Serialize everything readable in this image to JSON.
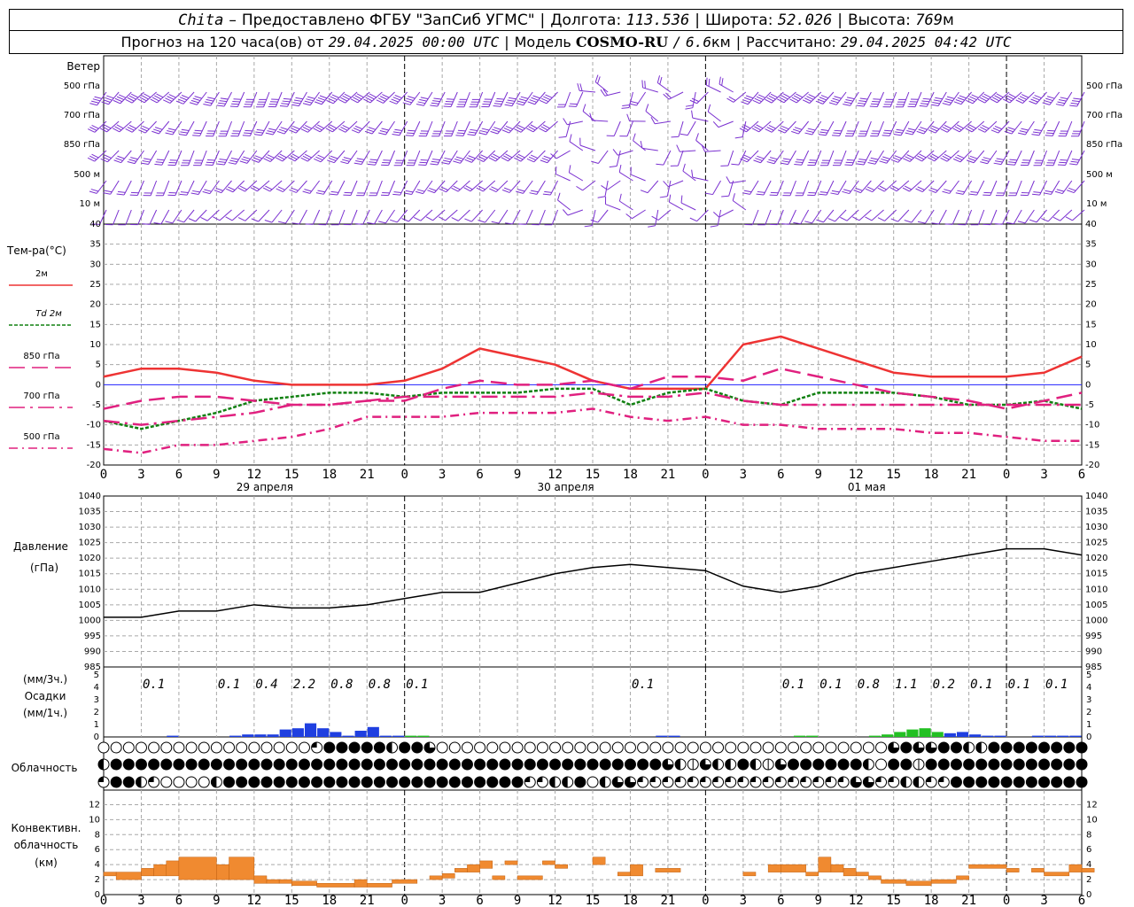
{
  "header": {
    "station": "Chita",
    "dash": "–",
    "provider": "Предоставлено ФГБУ \"ЗапСиб УГМС\"",
    "lon_label": "Долгота:",
    "lon_value": "113.536",
    "lat_label": "Широта:",
    "lat_value": "52.026",
    "alt_label": "Высота:",
    "alt_value": "769",
    "alt_unit": "м",
    "forecast_prefix": "Прогноз на 120 часа(ов) от",
    "forecast_start": "29.04.2025 00:00 UTC",
    "model_label": "Модель",
    "model_name": "COSMO-RU",
    "model_res_sep": "/",
    "model_res": "6.6",
    "model_res_unit": "км",
    "computed_label": "Рассчитано:",
    "computed_value": "29.04.2025 04:42 UTC"
  },
  "colors": {
    "wind": "#7a30d0",
    "t2m": "#ee3333",
    "td2m": "#108010",
    "t850": "#e0207f",
    "t700": "#e0207f",
    "t500": "#e0207f",
    "pressure": "#000000",
    "precip_blue": "#1f3fe0",
    "precip_green": "#22c022",
    "convective": "#f08a30",
    "grid": "#a8a8a8",
    "zero_line": "#2020ff"
  },
  "time_axis": {
    "hour_labels": [
      "0",
      "3",
      "6",
      "9",
      "12",
      "15",
      "18",
      "21",
      "0",
      "3",
      "6",
      "9",
      "12",
      "15",
      "18",
      "21",
      "0",
      "3",
      "6",
      "9",
      "12",
      "15",
      "18",
      "21",
      "0",
      "3",
      "6"
    ],
    "date_labels": [
      "29 апреля",
      "30 апреля",
      "01 мая"
    ]
  },
  "wind_panel": {
    "title": "Ветер",
    "levels": [
      "500 гПа",
      "700 гПа",
      "850 гПа",
      "500 м",
      "10 м"
    ]
  },
  "chart_data": [
    {
      "type": "line",
      "title": "Тем-ра(°C)",
      "ylim": [
        -20,
        40
      ],
      "yticks": [
        "40",
        "35",
        "30",
        "25",
        "20",
        "15",
        "10",
        "5",
        "0",
        "-5",
        "-10",
        "-15",
        "-20"
      ],
      "x_hours": [
        0,
        3,
        6,
        9,
        12,
        15,
        18,
        21,
        24,
        27,
        30,
        33,
        36,
        39,
        42,
        45,
        48,
        51,
        54,
        57,
        60,
        63,
        66,
        69,
        72,
        75,
        78
      ],
      "series": [
        {
          "name": "2м",
          "values": [
            2,
            4,
            4,
            3,
            1,
            0,
            0,
            0,
            1,
            4,
            9,
            7,
            5,
            1,
            -1,
            -1,
            -1,
            10,
            12,
            9,
            6,
            3,
            2,
            2,
            2,
            3,
            7
          ]
        },
        {
          "name": "Td 2м",
          "values": [
            -9,
            -11,
            -9,
            -7,
            -4,
            -3,
            -2,
            -2,
            -3,
            -2,
            -2,
            -2,
            -1,
            -1,
            -5,
            -2,
            -1,
            -4,
            -5,
            -2,
            -2,
            -2,
            -3,
            -5,
            -5,
            -4,
            -6
          ]
        },
        {
          "name": "850 гПа",
          "values": [
            -6,
            -4,
            -3,
            -3,
            -4,
            -5,
            -5,
            -4,
            -4,
            -1,
            1,
            0,
            0,
            1,
            -1,
            2,
            2,
            1,
            4,
            2,
            0,
            -2,
            -3,
            -4,
            -6,
            -4,
            -2
          ]
        },
        {
          "name": "700 гПа",
          "values": [
            -9,
            -10,
            -9,
            -8,
            -7,
            -5,
            -5,
            -4,
            -3,
            -3,
            -3,
            -3,
            -3,
            -2,
            -3,
            -3,
            -2,
            -4,
            -5,
            -5,
            -5,
            -5,
            -5,
            -5,
            -5,
            -5,
            -5
          ]
        },
        {
          "name": "500 гПа",
          "values": [
            -16,
            -17,
            -15,
            -15,
            -14,
            -13,
            -11,
            -8,
            -8,
            -8,
            -7,
            -7,
            -7,
            -6,
            -8,
            -9,
            -8,
            -10,
            -10,
            -11,
            -11,
            -11,
            -12,
            -12,
            -13,
            -14,
            -14
          ]
        }
      ]
    },
    {
      "type": "line",
      "title": "Давление",
      "unit": "(гПа)",
      "ylim": [
        985,
        1040
      ],
      "yticks": [
        "1040",
        "1035",
        "1030",
        "1025",
        "1020",
        "1015",
        "1010",
        "1005",
        "1000",
        "995",
        "990",
        "985"
      ],
      "x_hours": [
        0,
        3,
        6,
        9,
        12,
        15,
        18,
        21,
        24,
        27,
        30,
        33,
        36,
        39,
        42,
        45,
        48,
        51,
        54,
        57,
        60,
        63,
        66,
        69,
        72,
        75,
        78
      ],
      "values": [
        1001,
        1001,
        1003,
        1003,
        1005,
        1004,
        1004,
        1005,
        1007,
        1009,
        1009,
        1012,
        1015,
        1017,
        1018,
        1017,
        1016,
        1011,
        1009,
        1011,
        1015,
        1017,
        1019,
        1021,
        1023,
        1023,
        1021
      ]
    },
    {
      "type": "bar",
      "title": "Осадки",
      "unit_3h": "(мм/3ч.)",
      "unit_1h": "(мм/1ч.)",
      "ylim": [
        0,
        5
      ],
      "yticks": [
        "5",
        "4",
        "3",
        "2",
        "1",
        "0"
      ],
      "labels_3h": [
        {
          "hour": 4,
          "text": "0.1"
        },
        {
          "hour": 10,
          "text": "0.1"
        },
        {
          "hour": 13,
          "text": "0.4"
        },
        {
          "hour": 16,
          "text": "2.2"
        },
        {
          "hour": 19,
          "text": "0.8"
        },
        {
          "hour": 22,
          "text": "0.8"
        },
        {
          "hour": 25,
          "text": "0.1"
        },
        {
          "hour": 43,
          "text": "0.1"
        },
        {
          "hour": 55,
          "text": "0.1"
        },
        {
          "hour": 58,
          "text": "0.1"
        },
        {
          "hour": 61,
          "text": "0.8"
        },
        {
          "hour": 64,
          "text": "1.1"
        },
        {
          "hour": 67,
          "text": "0.2"
        },
        {
          "hour": 70,
          "text": "0.1"
        },
        {
          "hour": 73,
          "text": "0.1"
        },
        {
          "hour": 76,
          "text": "0.1"
        }
      ],
      "hourly": [
        0,
        0,
        0,
        0,
        0,
        0.1,
        0,
        0,
        0,
        0,
        0.1,
        0.2,
        0.2,
        0.2,
        0.6,
        0.7,
        1.1,
        0.7,
        0.4,
        0.1,
        0.5,
        0.8,
        0.1,
        0.1,
        0.1,
        0.1,
        0,
        0,
        0,
        0,
        0,
        0,
        0,
        0,
        0,
        0,
        0,
        0,
        0,
        0,
        0,
        0,
        0,
        0,
        0.1,
        0.1,
        0,
        0,
        0,
        0,
        0,
        0,
        0,
        0,
        0,
        0.1,
        0.1,
        0,
        0,
        0,
        0,
        0.1,
        0.2,
        0.4,
        0.6,
        0.7,
        0.4,
        0.3,
        0.4,
        0.2,
        0.1,
        0.1,
        0,
        0,
        0.1,
        0.1,
        0.1,
        0.1,
        0.1,
        0.1,
        0.1,
        0.1
      ],
      "hourly_type": [
        "b",
        "b",
        "b",
        "b",
        "b",
        "b",
        "b",
        "b",
        "b",
        "b",
        "b",
        "b",
        "b",
        "b",
        "b",
        "b",
        "b",
        "b",
        "b",
        "b",
        "b",
        "b",
        "b",
        "b",
        "g",
        "g",
        "g",
        "b",
        "b",
        "b",
        "b",
        "b",
        "b",
        "b",
        "b",
        "b",
        "b",
        "b",
        "b",
        "b",
        "b",
        "b",
        "b",
        "b",
        "b",
        "b",
        "b",
        "b",
        "b",
        "b",
        "b",
        "b",
        "b",
        "b",
        "b",
        "g",
        "g",
        "b",
        "b",
        "b",
        "b",
        "g",
        "g",
        "g",
        "g",
        "g",
        "g",
        "b",
        "b",
        "b",
        "b",
        "b",
        "b",
        "b",
        "b",
        "b",
        "b",
        "b",
        "b",
        "b",
        "b",
        "b"
      ]
    },
    {
      "type": "table",
      "title": "Облачность",
      "rows": [
        "oooooooooooooooooSbbbbbHbbqooooooooooooooooooooooooooooooooooooqbqqbbHHbbbbbbbbbbbbbbbboooooooooooooooooooooooooooooooooooooooooooo",
        "HbbbbbbbbbbbbbbbbbbbbbbbbbbbbbbbbbbbbbbbbbbbbqHtqHHbHtqbbbbbbHobbtbbbbbbbbbbbbbbHbbbbbbbbbbbbbbbbbbbbbbbbbbbbbbbbbbbbbbbbbbbbbbbbbbbb",
        "SbbHSooooHbbbbbbbbbbbbbbbbbbbbbbbbSSHHboHqqSSSSSSSSSSSSSSSSSqqSSHHSSbbbbbbbbbbbbbbbbbbbbbbbbHSbbSSSqSqSbbbbbbbbbbbbbbbbbbbbbbbbbb"
      ]
    },
    {
      "type": "bar",
      "title": "Конвективн.",
      "title2": "облачность",
      "unit": "(км)",
      "ylim": [
        0,
        13
      ],
      "yticks": [
        "12",
        "10",
        "8",
        "6",
        "4",
        "2",
        "0"
      ],
      "segments": [
        {
          "h0": 0,
          "h1": 1,
          "lo": 2.5,
          "hi": 3
        },
        {
          "h0": 1,
          "h1": 3,
          "lo": 2,
          "hi": 3
        },
        {
          "h0": 3,
          "h1": 4,
          "lo": 2.5,
          "hi": 3.5
        },
        {
          "h0": 4,
          "h1": 5,
          "lo": 2.5,
          "hi": 4
        },
        {
          "h0": 5,
          "h1": 6,
          "lo": 2.5,
          "hi": 4.5
        },
        {
          "h0": 6,
          "h1": 9,
          "lo": 2,
          "hi": 5
        },
        {
          "h0": 9,
          "h1": 10,
          "lo": 2,
          "hi": 4
        },
        {
          "h0": 10,
          "h1": 12,
          "lo": 2,
          "hi": 5
        },
        {
          "h0": 12,
          "h1": 13,
          "lo": 1.5,
          "hi": 2.5
        },
        {
          "h0": 13,
          "h1": 14,
          "lo": 1.5,
          "hi": 2
        },
        {
          "h0": 14,
          "h1": 15,
          "lo": 1.5,
          "hi": 2
        },
        {
          "h0": 15,
          "h1": 17,
          "lo": 1.2,
          "hi": 1.8
        },
        {
          "h0": 17,
          "h1": 20,
          "lo": 1,
          "hi": 1.5
        },
        {
          "h0": 20,
          "h1": 21,
          "lo": 1,
          "hi": 2
        },
        {
          "h0": 21,
          "h1": 23,
          "lo": 1,
          "hi": 1.5
        },
        {
          "h0": 23,
          "h1": 25,
          "lo": 1.5,
          "hi": 2
        },
        {
          "h0": 26,
          "h1": 27,
          "lo": 2,
          "hi": 2.5
        },
        {
          "h0": 27,
          "h1": 28,
          "lo": 2.2,
          "hi": 2.8
        },
        {
          "h0": 28,
          "h1": 29,
          "lo": 3,
          "hi": 3.5
        },
        {
          "h0": 29,
          "h1": 30,
          "lo": 3,
          "hi": 4
        },
        {
          "h0": 30,
          "h1": 31,
          "lo": 3.5,
          "hi": 4.5
        },
        {
          "h0": 31,
          "h1": 32,
          "lo": 2,
          "hi": 2.5
        },
        {
          "h0": 32,
          "h1": 33,
          "lo": 4,
          "hi": 4.5
        },
        {
          "h0": 33,
          "h1": 35,
          "lo": 2,
          "hi": 2.5
        },
        {
          "h0": 35,
          "h1": 36,
          "lo": 4,
          "hi": 4.5
        },
        {
          "h0": 36,
          "h1": 37,
          "lo": 3.5,
          "hi": 4
        },
        {
          "h0": 39,
          "h1": 40,
          "lo": 4,
          "hi": 5
        },
        {
          "h0": 41,
          "h1": 42,
          "lo": 2.5,
          "hi": 3
        },
        {
          "h0": 42,
          "h1": 43,
          "lo": 2.5,
          "hi": 4
        },
        {
          "h0": 44,
          "h1": 46,
          "lo": 3,
          "hi": 3.5
        },
        {
          "h0": 51,
          "h1": 52,
          "lo": 2.5,
          "hi": 3
        },
        {
          "h0": 53,
          "h1": 54,
          "lo": 3,
          "hi": 4
        },
        {
          "h0": 54,
          "h1": 56,
          "lo": 3,
          "hi": 4
        },
        {
          "h0": 56,
          "h1": 57,
          "lo": 2.5,
          "hi": 3
        },
        {
          "h0": 57,
          "h1": 58,
          "lo": 3,
          "hi": 5
        },
        {
          "h0": 58,
          "h1": 59,
          "lo": 3,
          "hi": 4
        },
        {
          "h0": 59,
          "h1": 60,
          "lo": 2.5,
          "hi": 3.5
        },
        {
          "h0": 60,
          "h1": 61,
          "lo": 2.5,
          "hi": 3
        },
        {
          "h0": 61,
          "h1": 62,
          "lo": 2,
          "hi": 2.5
        },
        {
          "h0": 62,
          "h1": 64,
          "lo": 1.5,
          "hi": 2
        },
        {
          "h0": 64,
          "h1": 66,
          "lo": 1.2,
          "hi": 1.8
        },
        {
          "h0": 66,
          "h1": 68,
          "lo": 1.5,
          "hi": 2
        },
        {
          "h0": 68,
          "h1": 69,
          "lo": 2,
          "hi": 2.5
        },
        {
          "h0": 69,
          "h1": 72,
          "lo": 3.5,
          "hi": 4
        },
        {
          "h0": 72,
          "h1": 73,
          "lo": 3,
          "hi": 3.5
        },
        {
          "h0": 74,
          "h1": 75,
          "lo": 3,
          "hi": 3.5
        },
        {
          "h0": 75,
          "h1": 77,
          "lo": 2.5,
          "hi": 3
        },
        {
          "h0": 77,
          "h1": 78,
          "lo": 3,
          "hi": 4
        },
        {
          "h0": 78,
          "h1": 79,
          "lo": 3,
          "hi": 3.5
        }
      ]
    }
  ]
}
